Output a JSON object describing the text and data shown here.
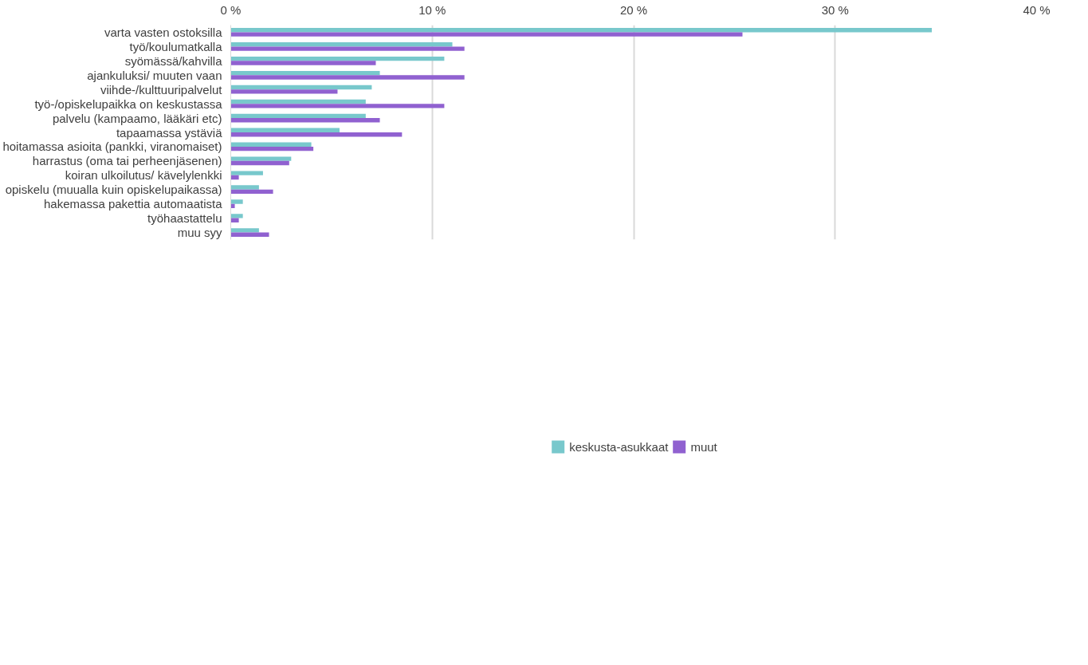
{
  "chart_data": {
    "type": "bar",
    "orientation": "horizontal",
    "categories": [
      "varta vasten ostoksilla",
      "työ/koulumatkalla",
      "syömässä/kahvilla",
      "ajankuluksi/ muuten vaan",
      "viihde-/kulttuuripalvelut",
      "työ-/opiskelupaikka on keskustassa",
      "palvelu (kampaamo, lääkäri etc)",
      "tapaamassa ystäviä",
      "hoitamassa asioita (pankki, viranomaiset)",
      "harrastus (oma tai perheenjäsenen)",
      "koiran ulkoilutus/ kävelylenkki",
      "opiskelu (muualla kuin opiskelupaikassa)",
      "hakemassa pakettia automaatista",
      "työhaastattelu",
      "muu syy"
    ],
    "series": [
      {
        "name": "keskusta-asukkaat",
        "color": "#78c8cc",
        "values": [
          34.8,
          11.0,
          10.6,
          7.4,
          7.0,
          6.7,
          6.7,
          5.4,
          4.0,
          3.0,
          1.6,
          1.4,
          0.6,
          0.6,
          1.4
        ]
      },
      {
        "name": "muut",
        "color": "#9061d0",
        "values": [
          25.4,
          11.6,
          7.2,
          11.6,
          5.3,
          10.6,
          7.4,
          8.5,
          4.1,
          2.9,
          0.4,
          2.1,
          0.2,
          0.4,
          1.9
        ]
      }
    ],
    "xlim": [
      0,
      40
    ],
    "xticks": [
      {
        "value": 0,
        "label": "0 %"
      },
      {
        "value": 10,
        "label": "10 %"
      },
      {
        "value": 20,
        "label": "20 %"
      },
      {
        "value": 30,
        "label": "30 %"
      },
      {
        "value": 40,
        "label": "40 %"
      }
    ],
    "grid": "x",
    "legend": "bottom"
  }
}
